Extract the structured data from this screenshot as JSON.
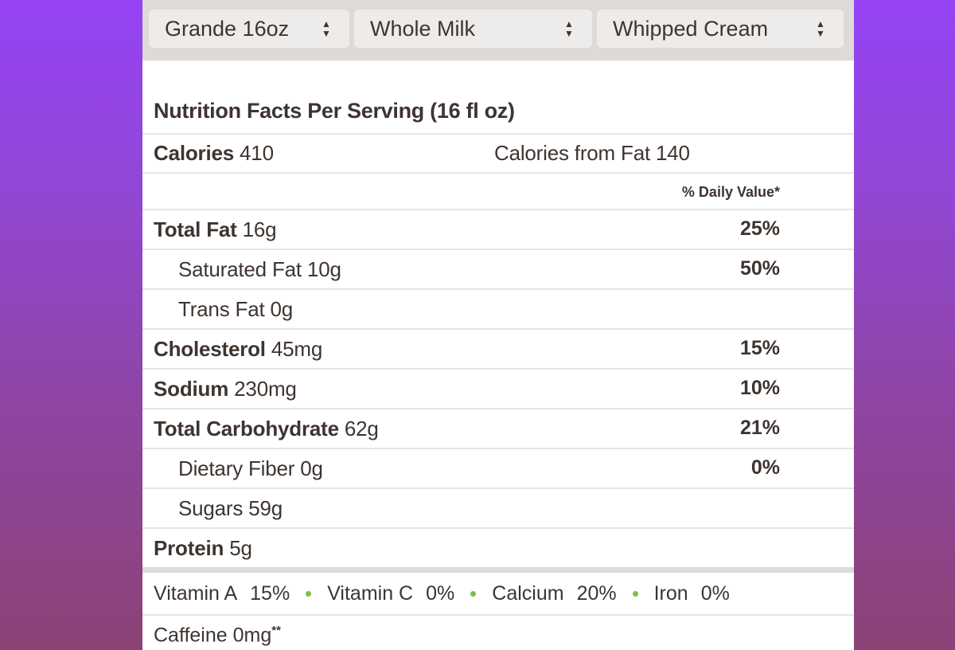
{
  "selectors": {
    "size": "Grande 16oz",
    "milk": "Whole Milk",
    "topping": "Whipped Cream"
  },
  "nutrition": {
    "title": "Nutrition Facts Per Serving (16 fl oz)",
    "calories_label": "Calories",
    "calories_value": "410",
    "calories_from_fat_label": "Calories from Fat",
    "calories_from_fat_value": "140",
    "daily_value_header": "% Daily Value*",
    "rows": [
      {
        "label": "Total Fat",
        "amount": "16g",
        "dv": "25%"
      },
      {
        "label": "Saturated Fat",
        "amount": "10g",
        "dv": "50%"
      },
      {
        "label": "Trans Fat",
        "amount": "0g",
        "dv": ""
      },
      {
        "label": "Cholesterol",
        "amount": "45mg",
        "dv": "15%"
      },
      {
        "label": "Sodium",
        "amount": "230mg",
        "dv": "10%"
      },
      {
        "label": "Total Carbohydrate",
        "amount": "62g",
        "dv": "21%"
      },
      {
        "label": "Dietary Fiber",
        "amount": "0g",
        "dv": "0%"
      },
      {
        "label": "Sugars",
        "amount": "59g",
        "dv": ""
      },
      {
        "label": "Protein",
        "amount": "5g",
        "dv": ""
      }
    ],
    "vitamins": [
      {
        "name": "Vitamin A",
        "value": "15%"
      },
      {
        "name": "Vitamin C",
        "value": "0%"
      },
      {
        "name": "Calcium",
        "value": "20%"
      },
      {
        "name": "Iron",
        "value": "0%"
      }
    ],
    "caffeine_label": "Caffeine",
    "caffeine_value": "0mg",
    "caffeine_mark": "**"
  }
}
